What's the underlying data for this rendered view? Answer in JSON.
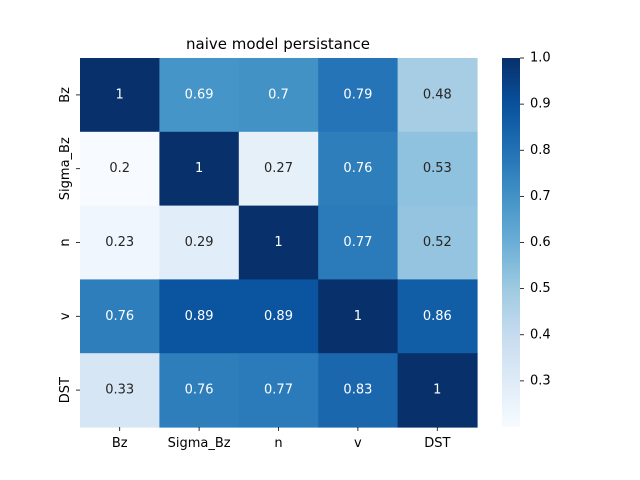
{
  "chart_data": {
    "type": "heatmap",
    "title": "naive model persistance",
    "x_categories": [
      "Bz",
      "Sigma_Bz",
      "n",
      "v",
      "DST"
    ],
    "y_categories": [
      "Bz",
      "Sigma_Bz",
      "n",
      "v",
      "DST"
    ],
    "values": [
      [
        1,
        0.69,
        0.7,
        0.79,
        0.48
      ],
      [
        0.2,
        1,
        0.27,
        0.76,
        0.53
      ],
      [
        0.23,
        0.29,
        1,
        0.77,
        0.52
      ],
      [
        0.76,
        0.89,
        0.89,
        1,
        0.86
      ],
      [
        0.33,
        0.76,
        0.77,
        0.83,
        1
      ]
    ],
    "value_labels": [
      [
        "1",
        "0.69",
        "0.7",
        "0.79",
        "0.48"
      ],
      [
        "0.2",
        "1",
        "0.27",
        "0.76",
        "0.53"
      ],
      [
        "0.23",
        "0.29",
        "1",
        "0.77",
        "0.52"
      ],
      [
        "0.76",
        "0.89",
        "0.89",
        "1",
        "0.86"
      ],
      [
        "0.33",
        "0.76",
        "0.77",
        "0.83",
        "1"
      ]
    ],
    "colormap": "Blues",
    "color_range": [
      0.2,
      1.0
    ],
    "colorbar_ticks": [
      "0.3",
      "0.4",
      "0.5",
      "0.6",
      "0.7",
      "0.8",
      "0.9",
      "1.0"
    ],
    "colorbar_tick_values": [
      0.3,
      0.4,
      0.5,
      0.6,
      0.7,
      0.8,
      0.9,
      1.0
    ]
  }
}
